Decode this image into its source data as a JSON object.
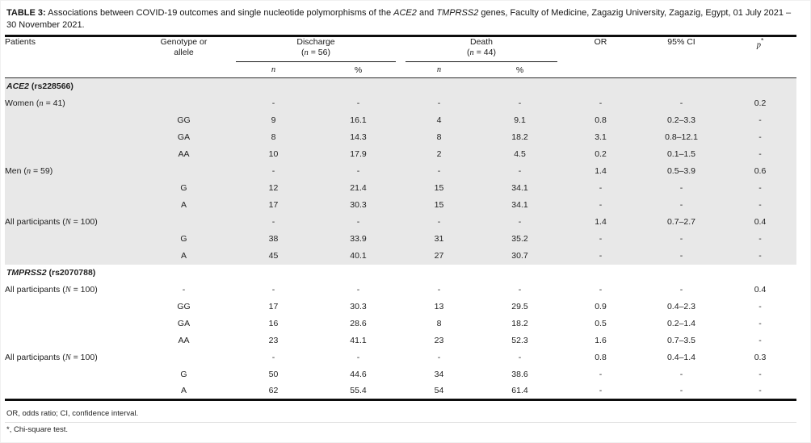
{
  "title": {
    "label": "TABLE 3:",
    "parts": [
      {
        "text": " Associations between COVID-19 outcomes and single nucleotide polymorphisms of the "
      },
      {
        "text": "ACE2",
        "italic": true
      },
      {
        "text": " and "
      },
      {
        "text": "TMPRSS2",
        "italic": true
      },
      {
        "text": " genes, Faculty of Medicine, Zagazig University, Zagazig, Egypt, 01 July 2021 – 30 November 2021."
      }
    ]
  },
  "columns": {
    "patients": "Patients",
    "genotype_line1": "Genotype or",
    "genotype_line2": "allele",
    "discharge_line1": "Discharge",
    "discharge_line2": "(n = 56)",
    "death_line1": "Death",
    "death_line2": "(n = 44)",
    "sub_n": "n",
    "sub_pct": "%",
    "or": "OR",
    "ci": "95% CI",
    "p": "p",
    "p_star": "*"
  },
  "column_names": [
    "patients",
    "genotype-allele",
    "discharge-n",
    "discharge-percent",
    "death-n",
    "death-percent",
    "odds-ratio",
    "confidence-interval",
    "p-value"
  ],
  "sections": [
    {
      "gene": "ACE2",
      "locus": " (rs228566)",
      "shaded": true,
      "rows": [
        [
          "Women (n = 41)",
          "",
          "-",
          "-",
          "-",
          "-",
          "-",
          "-",
          "0.2"
        ],
        [
          "",
          "GG",
          "9",
          "16.1",
          "4",
          "9.1",
          "0.8",
          "0.2–3.3",
          "-"
        ],
        [
          "",
          "GA",
          "8",
          "14.3",
          "8",
          "18.2",
          "3.1",
          "0.8–12.1",
          "-"
        ],
        [
          "",
          "AA",
          "10",
          "17.9",
          "2",
          "4.5",
          "0.2",
          "0.1–1.5",
          "-"
        ],
        [
          "Men (n = 59)",
          "",
          "-",
          "-",
          "-",
          "-",
          "1.4",
          "0.5–3.9",
          "0.6"
        ],
        [
          "",
          "G",
          "12",
          "21.4",
          "15",
          "34.1",
          "-",
          "-",
          "-"
        ],
        [
          "",
          "A",
          "17",
          "30.3",
          "15",
          "34.1",
          "-",
          "-",
          "-"
        ],
        [
          "All participants (N = 100)",
          "",
          "-",
          "-",
          "-",
          "-",
          "1.4",
          "0.7–2.7",
          "0.4"
        ],
        [
          "",
          "G",
          "38",
          "33.9",
          "31",
          "35.2",
          "-",
          "-",
          "-"
        ],
        [
          "",
          "A",
          "45",
          "40.1",
          "27",
          "30.7",
          "-",
          "-",
          "-"
        ]
      ]
    },
    {
      "gene": "TMPRSS2",
      "locus": " (rs2070788)",
      "shaded": false,
      "rows": [
        [
          "All participants (N = 100)",
          "-",
          "-",
          "-",
          "-",
          "-",
          "-",
          "-",
          "0.4"
        ],
        [
          "",
          "GG",
          "17",
          "30.3",
          "13",
          "29.5",
          "0.9",
          "0.4–2.3",
          "-"
        ],
        [
          "",
          "GA",
          "16",
          "28.6",
          "8",
          "18.2",
          "0.5",
          "0.2–1.4",
          "-"
        ],
        [
          "",
          "AA",
          "23",
          "41.1",
          "23",
          "52.3",
          "1.6",
          "0.7–3.5",
          "-"
        ],
        [
          "All participants (N = 100)",
          "",
          "-",
          "-",
          "-",
          "-",
          "0.8",
          "0.4–1.4",
          "0.3"
        ],
        [
          "",
          "G",
          "50",
          "44.6",
          "34",
          "38.6",
          "-",
          "-",
          "-"
        ],
        [
          "",
          "A",
          "62",
          "55.4",
          "54",
          "61.4",
          "-",
          "-",
          "-"
        ]
      ]
    }
  ],
  "footnotes": [
    "OR, odds ratio; CI, confidence interval.",
    "*, Chi-square test."
  ],
  "style": {
    "shaded_row_bg": "#e8e8e8",
    "rule_color": "#0d0d0d",
    "text_color": "#1f1f1f"
  }
}
